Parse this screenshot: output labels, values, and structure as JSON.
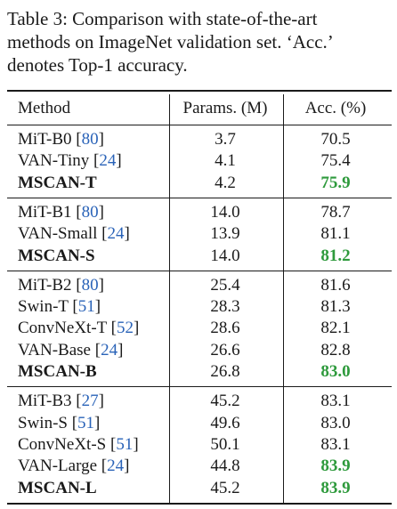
{
  "caption": {
    "lines": [
      "Table 3:  Comparison with state-of-the-art",
      "methods on ImageNet validation set. ‘Acc.’",
      "denotes Top-1 accuracy."
    ]
  },
  "header": {
    "method": "Method",
    "params": "Params. (M)",
    "acc": "Acc. (%)"
  },
  "colors": {
    "best_acc": "#2e9a3c",
    "citation": "#2a63b8"
  },
  "groups": [
    {
      "rows": [
        {
          "name": "MiT-B0",
          "ref": "80",
          "params": "3.7",
          "acc": "70.5",
          "bold": false,
          "best": false
        },
        {
          "name": "VAN-Tiny",
          "ref": "24",
          "params": "4.1",
          "acc": "75.4",
          "bold": false,
          "best": false
        },
        {
          "name": "MSCAN-T",
          "ref": "",
          "params": "4.2",
          "acc": "75.9",
          "bold": true,
          "best": true
        }
      ]
    },
    {
      "rows": [
        {
          "name": "MiT-B1",
          "ref": "80",
          "params": "14.0",
          "acc": "78.7",
          "bold": false,
          "best": false
        },
        {
          "name": "VAN-Small",
          "ref": "24",
          "params": "13.9",
          "acc": "81.1",
          "bold": false,
          "best": false
        },
        {
          "name": "MSCAN-S",
          "ref": "",
          "params": "14.0",
          "acc": "81.2",
          "bold": true,
          "best": true
        }
      ]
    },
    {
      "rows": [
        {
          "name": "MiT-B2",
          "ref": "80",
          "params": "25.4",
          "acc": "81.6",
          "bold": false,
          "best": false
        },
        {
          "name": "Swin-T",
          "ref": "51",
          "params": "28.3",
          "acc": "81.3",
          "bold": false,
          "best": false
        },
        {
          "name": "ConvNeXt-T",
          "ref": "52",
          "params": "28.6",
          "acc": "82.1",
          "bold": false,
          "best": false
        },
        {
          "name": "VAN-Base",
          "ref": "24",
          "params": "26.6",
          "acc": "82.8",
          "bold": false,
          "best": false
        },
        {
          "name": "MSCAN-B",
          "ref": "",
          "params": "26.8",
          "acc": "83.0",
          "bold": true,
          "best": true
        }
      ]
    },
    {
      "rows": [
        {
          "name": "MiT-B3",
          "ref": "27",
          "params": "45.2",
          "acc": "83.1",
          "bold": false,
          "best": false
        },
        {
          "name": "Swin-S",
          "ref": "51",
          "params": "49.6",
          "acc": "83.0",
          "bold": false,
          "best": false
        },
        {
          "name": "ConvNeXt-S",
          "ref": "51",
          "params": "50.1",
          "acc": "83.1",
          "bold": false,
          "best": false
        },
        {
          "name": "VAN-Large",
          "ref": "24",
          "params": "44.8",
          "acc": "83.9",
          "bold": false,
          "best": true
        },
        {
          "name": "MSCAN-L",
          "ref": "",
          "params": "45.2",
          "acc": "83.9",
          "bold": true,
          "best": true
        }
      ]
    }
  ]
}
